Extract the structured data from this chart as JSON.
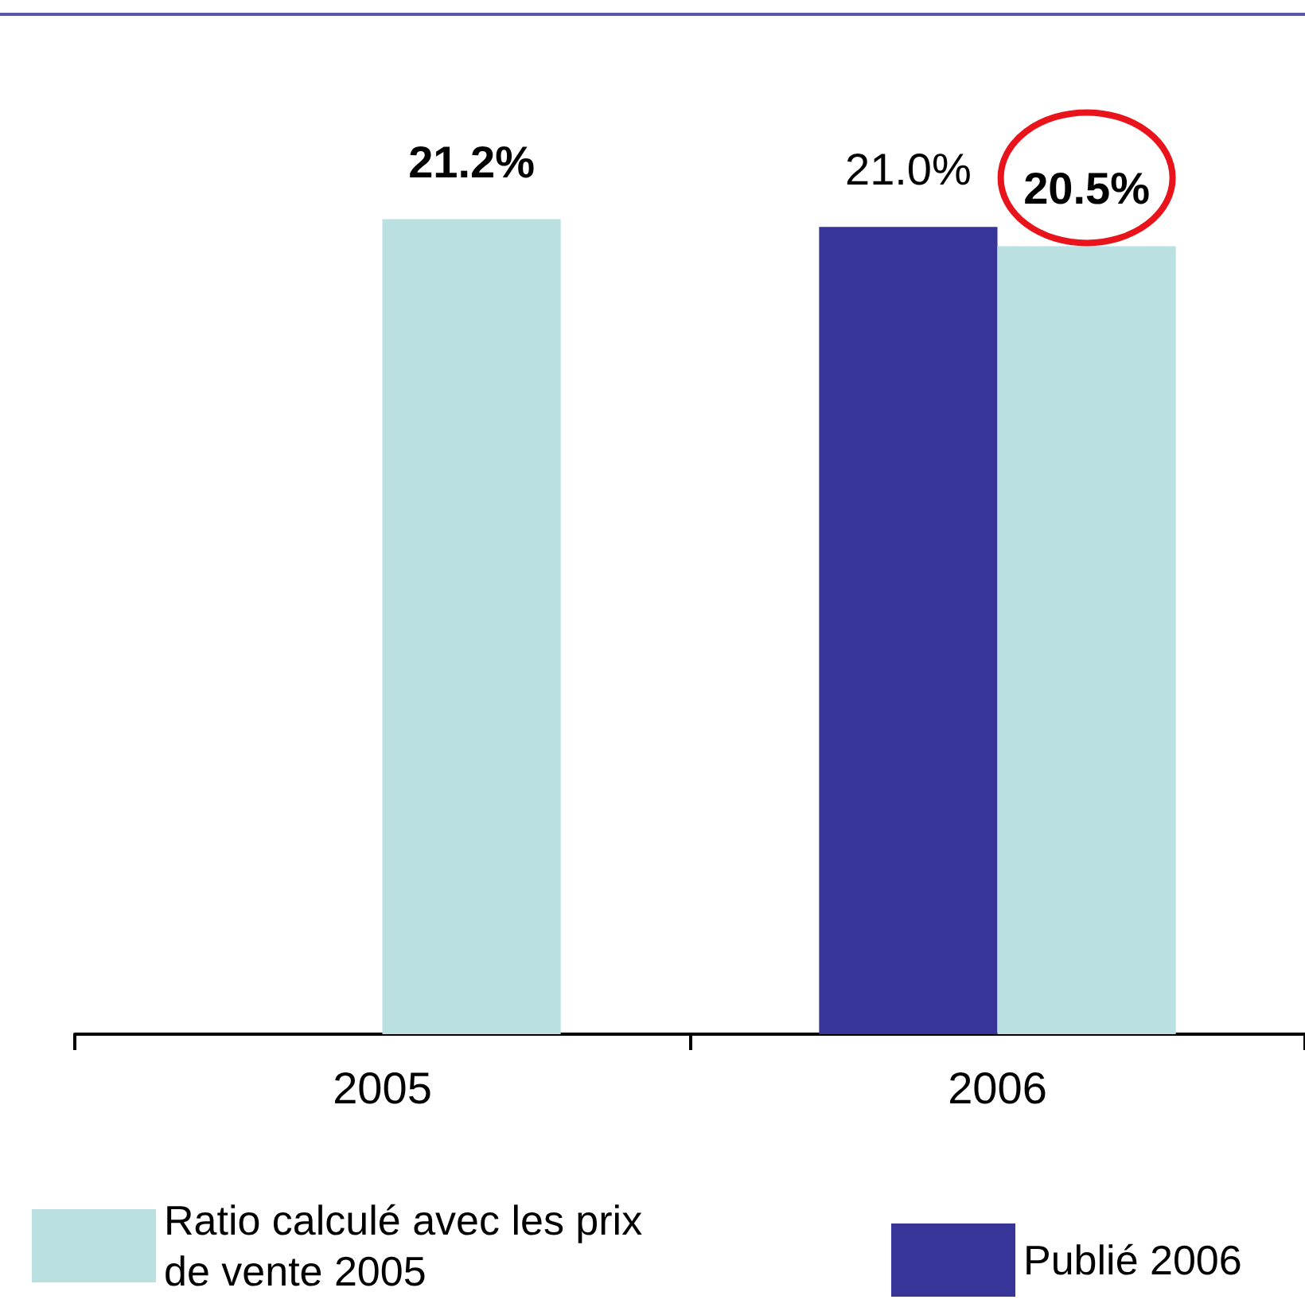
{
  "chart_data": {
    "type": "bar",
    "categories": [
      "2005",
      "2006"
    ],
    "series": [
      {
        "name": "Publié 2006",
        "color": "#373597",
        "values": [
          null,
          21.0
        ],
        "value_labels": [
          null,
          "21.0%"
        ]
      },
      {
        "name": "Ratio calculé avec les prix de vente 2005",
        "color": "#bbe0e2",
        "values": [
          21.2,
          20.5
        ],
        "value_labels": [
          "21.2%",
          "20.5%"
        ]
      }
    ],
    "tick_labels": "x",
    "legend": "bottom"
  }
}
